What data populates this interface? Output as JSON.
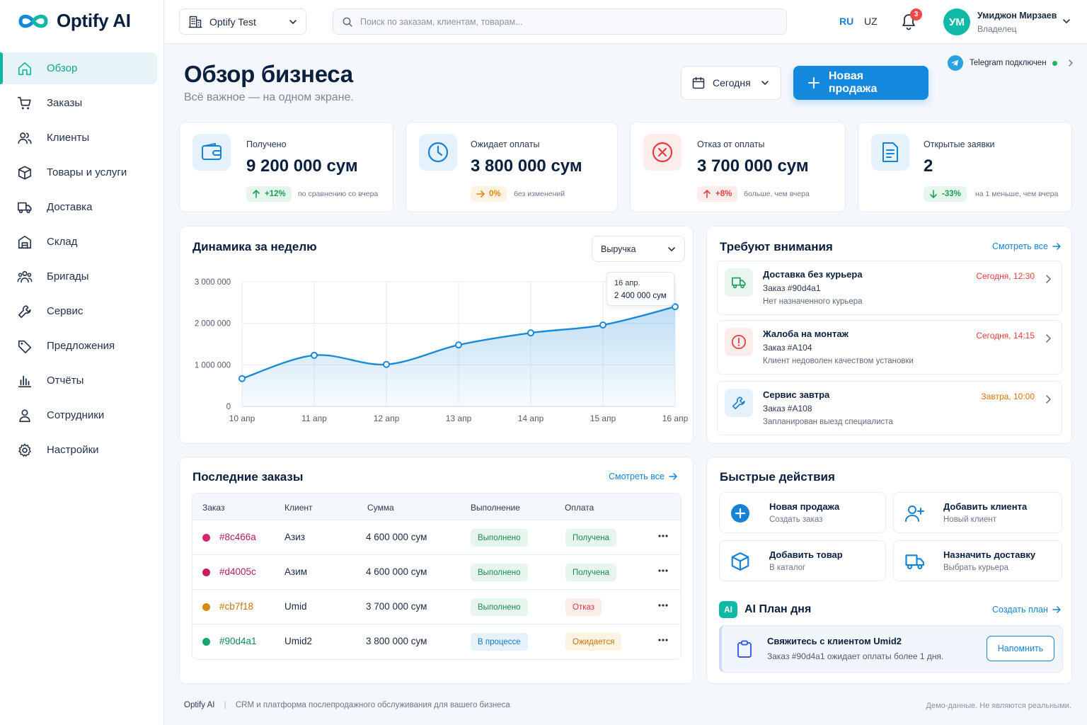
{
  "brand": {
    "name": "Optify AI"
  },
  "sidebar": {
    "items": [
      {
        "label": "Обзор",
        "icon": "home-icon",
        "active": true
      },
      {
        "label": "Заказы",
        "icon": "cart-icon"
      },
      {
        "label": "Клиенты",
        "icon": "users-icon"
      },
      {
        "label": "Товары и услуги",
        "icon": "box-icon"
      },
      {
        "label": "Доставка",
        "icon": "truck-icon"
      },
      {
        "label": "Склад",
        "icon": "warehouse-icon"
      },
      {
        "label": "Бригады",
        "icon": "team-icon"
      },
      {
        "label": "Сервис",
        "icon": "wrench-icon"
      },
      {
        "label": "Предложения",
        "icon": "tag-icon"
      },
      {
        "label": "Отчёты",
        "icon": "bar-chart-icon"
      },
      {
        "label": "Сотрудники",
        "icon": "person-icon"
      },
      {
        "label": "Настройки",
        "icon": "gear-icon"
      }
    ]
  },
  "topbar": {
    "org": "Optify Test",
    "search_placeholder": "Поиск по заказам, клиентам, товарам...",
    "lang_ru": "RU",
    "lang_uz": "UZ",
    "notifications": "3",
    "user": {
      "initials": "УМ",
      "name": "Умиджон Мирзаев",
      "role": "Владелец"
    }
  },
  "header": {
    "title": "Обзор бизнеса",
    "subtitle": "Всё важное — на одном экране.",
    "telegram": "Telegram подключен",
    "date": "Сегодня",
    "new_sale": "Новая продажа"
  },
  "stats": [
    {
      "label": "Получено",
      "value": "9 200 000 сум",
      "change": "+12%",
      "note": "по сравнению со вчера",
      "color": "#1b9c5a"
    },
    {
      "label": "Ожидает оплаты",
      "value": "3 800 000 сум",
      "change": "0%",
      "note": "без изменений",
      "color": "#e08a00"
    },
    {
      "label": "Отказ от оплаты",
      "value": "3 700 000 сум",
      "change": "+8%",
      "note": "больше, чем вчера",
      "color": "#e53e3e"
    },
    {
      "label": "Открытые заявки",
      "value": "2",
      "change": "-33%",
      "note": "на 1 меньше, чем вчера",
      "color": "#1b9c5a"
    }
  ],
  "weekly": {
    "title": "Динамика за неделю",
    "metric": "Выручка",
    "tooltip_date": "16 апр.",
    "tooltip_value": "2 400 000 сум"
  },
  "chart_data": {
    "type": "area",
    "categories": [
      "10 апр",
      "11 апр",
      "12 апр",
      "13 апр",
      "14 апр",
      "15 апр",
      "16 апр"
    ],
    "series": [
      {
        "values": [
          670000,
          1230000,
          1010000,
          1480000,
          1770000,
          1960000,
          2400000
        ]
      }
    ],
    "yticks": [
      "0",
      "1 000 000",
      "2 000 000",
      "3 000 000"
    ],
    "ylim": [
      0,
      3000000
    ],
    "grid": true,
    "color": "#1a8ad8"
  },
  "attention": {
    "title": "Требуют внимания",
    "link": "Смотреть все",
    "items": [
      {
        "title": "Доставка без курьера",
        "order": "Заказ #90d4a1",
        "desc": "Нет назначенного курьера",
        "time": "Сегодня, 12:30",
        "icon": "truck-icon",
        "time_color": "#e53e3e"
      },
      {
        "title": "Жалоба на монтаж",
        "order": "Заказ #A104",
        "desc": "Клиент недоволен качеством установки",
        "time": "Сегодня, 14:15",
        "icon": "alert-icon",
        "time_color": "#e53e3e"
      },
      {
        "title": "Сервис завтра",
        "order": "Заказ #A108",
        "desc": "Запланирован выезд специалиста",
        "time": "Завтра, 10:00",
        "icon": "wrench-icon",
        "time_color": "#d97706"
      }
    ]
  },
  "orders": {
    "title": "Последние заказы",
    "link": "Смотреть все",
    "columns": [
      "Заказ",
      "Клиент",
      "Сумма",
      "Выполнение",
      "Оплата"
    ],
    "rows": [
      {
        "id": "#8c466a",
        "client": "Азиз",
        "sum": "4 600 000 сум",
        "fulfil": "Выполнено",
        "pay": "Получена",
        "dot": "#d6246e"
      },
      {
        "id": "#d4005c",
        "client": "Азим",
        "sum": "4 600 000 сум",
        "fulfil": "Выполнено",
        "pay": "Получена",
        "dot": "#c81e5c"
      },
      {
        "id": "#cb7f18",
        "client": "Umid",
        "sum": "3 700 000 сум",
        "fulfil": "Выполнено",
        "pay": "Отказ",
        "dot": "#d88a14"
      },
      {
        "id": "#90d4a1",
        "client": "Umid2",
        "sum": "3 800 000 сум",
        "fulfil": "В процессе",
        "pay": "Ожидается",
        "dot": "#16a56a"
      }
    ]
  },
  "quick": {
    "title": "Быстрые действия",
    "items": [
      {
        "title": "Новая продажа",
        "sub": "Создать заказ",
        "icon": "plus-circle-icon"
      },
      {
        "title": "Добавить клиента",
        "sub": "Новый клиент",
        "icon": "user-plus-icon"
      },
      {
        "title": "Добавить товар",
        "sub": "В каталог",
        "icon": "box-icon"
      },
      {
        "title": "Назначить доставку",
        "sub": "Выбрать курьера",
        "icon": "truck-icon"
      }
    ]
  },
  "ai": {
    "badge": "AI",
    "title": "AI План дня",
    "link": "Создать план",
    "task_title": "Свяжитесь с клиентом Umid2",
    "task_desc": "Заказ #90d4a1 ожидает оплаты более 1 дня.",
    "remind": "Напомнить"
  },
  "footer": {
    "brand": "Optify AI",
    "desc": "CRM и платформа послепродажного обслуживания для вашего бизнеса",
    "note": "Демо-данные. Не являются реальными."
  }
}
